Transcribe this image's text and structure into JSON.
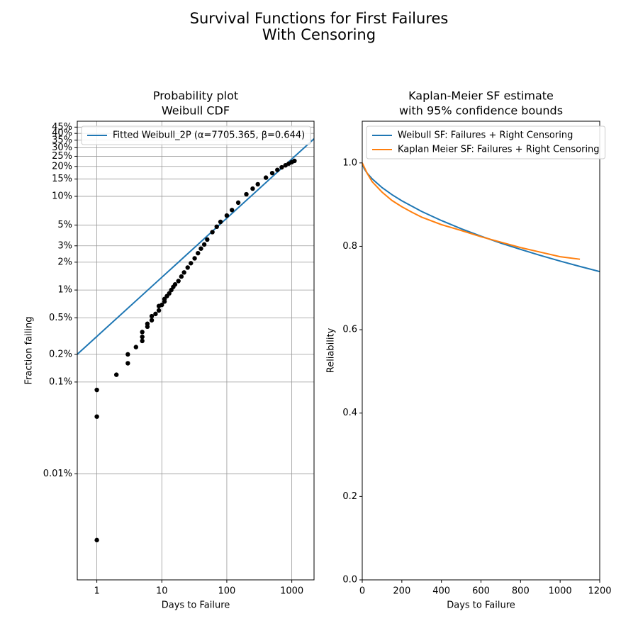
{
  "title": [
    "Survival Functions for First Failures",
    "With Censoring"
  ],
  "chart_data": [
    {
      "type": "scatter",
      "title": [
        "Probability plot",
        "Weibull CDF"
      ],
      "xlabel": "Days to Failure",
      "ylabel": "Fraction failing",
      "xscale": "log",
      "yscale": "weibull",
      "grid": true,
      "legend": "upper left",
      "xlim": [
        0.5,
        2200
      ],
      "xticks": [
        1,
        10,
        100,
        1000
      ],
      "ylim": [
        0.0007,
        50
      ],
      "yticks": [
        {
          "value": 0.01,
          "label": "0.01%"
        },
        {
          "value": 0.1,
          "label": "0.1%"
        },
        {
          "value": 0.2,
          "label": "0.2%"
        },
        {
          "value": 0.5,
          "label": "0.5%"
        },
        {
          "value": 1,
          "label": "1%"
        },
        {
          "value": 2,
          "label": "2%"
        },
        {
          "value": 3,
          "label": "3%"
        },
        {
          "value": 5,
          "label": "5%"
        },
        {
          "value": 10,
          "label": "10%"
        },
        {
          "value": 15,
          "label": "15%"
        },
        {
          "value": 20,
          "label": "20%"
        },
        {
          "value": 25,
          "label": "25%"
        },
        {
          "value": 30,
          "label": "30%"
        },
        {
          "value": 35,
          "label": "35%"
        },
        {
          "value": 40,
          "label": "40%"
        },
        {
          "value": 45,
          "label": "45%"
        }
      ],
      "series": [
        {
          "name": "Fitted Weibull_2P (α=7705.365, β=0.644)",
          "type": "line",
          "color": "#1f77b4",
          "x": [
            0.5,
            1,
            10,
            100,
            1000,
            2200
          ],
          "values": [
            0.2005,
            0.313,
            1.373,
            5.91,
            23.55,
            35.99
          ]
        },
        {
          "type": "scatter",
          "color": "#000000",
          "x": [
            1,
            1,
            1,
            2,
            3,
            3,
            4,
            5,
            5,
            5,
            6,
            6,
            7,
            7,
            8,
            9,
            9,
            10,
            11,
            11,
            12,
            13,
            14,
            15,
            16,
            18,
            20,
            22,
            25,
            28,
            32,
            36,
            40,
            45,
            50,
            60,
            70,
            80,
            100,
            120,
            150,
            200,
            250,
            300,
            400,
            500,
            600,
            700,
            800,
            900,
            1000,
            1100
          ],
          "values": [
            0.0019,
            0.042,
            0.082,
            0.12,
            0.16,
            0.2,
            0.24,
            0.28,
            0.31,
            0.35,
            0.4,
            0.43,
            0.47,
            0.52,
            0.55,
            0.6,
            0.67,
            0.69,
            0.75,
            0.8,
            0.86,
            0.92,
            1.0,
            1.08,
            1.15,
            1.25,
            1.4,
            1.55,
            1.75,
            1.95,
            2.2,
            2.5,
            2.8,
            3.1,
            3.5,
            4.2,
            4.8,
            5.4,
            6.3,
            7.2,
            8.6,
            10.5,
            12.0,
            13.3,
            15.5,
            17.2,
            18.5,
            19.6,
            20.5,
            21.3,
            22.0,
            22.6
          ]
        }
      ]
    },
    {
      "type": "line",
      "title": [
        "Kaplan-Meier SF estimate",
        "with 95% confidence bounds"
      ],
      "xlabel": "Days to Failure",
      "ylabel": "Reliability",
      "xscale": "linear",
      "yscale": "linear",
      "grid": false,
      "legend": "upper left",
      "xlim": [
        0,
        1200
      ],
      "xticks": [
        0,
        200,
        400,
        600,
        800,
        1000,
        1200
      ],
      "ylim": [
        0,
        1.1
      ],
      "yticks": [
        {
          "value": 0,
          "label": "0.0"
        },
        0.2,
        0.4,
        0.6,
        0.8,
        {
          "value": 1,
          "label": "1.0"
        }
      ],
      "series": [
        {
          "name": "Weibull SF: Failures + Right Censoring",
          "color": "#1f77b4",
          "x": [
            1,
            10,
            25,
            50,
            100,
            150,
            200,
            300,
            400,
            500,
            600,
            700,
            800,
            900,
            1000,
            1100,
            1200
          ],
          "values": [
            0.9969,
            0.9863,
            0.9753,
            0.9618,
            0.9409,
            0.9239,
            0.9092,
            0.8837,
            0.8618,
            0.8422,
            0.8243,
            0.8078,
            0.7926,
            0.7781,
            0.7645,
            0.7517,
            0.7394
          ]
        },
        {
          "name": "Kaplan Meier SF: Failures + Right Censoring",
          "color": "#ff7f0e",
          "x": [
            0,
            25,
            50,
            100,
            150,
            200,
            250,
            300,
            400,
            500,
            600,
            700,
            800,
            900,
            1000,
            1100
          ],
          "values": [
            1.0,
            0.975,
            0.955,
            0.93,
            0.91,
            0.895,
            0.882,
            0.87,
            0.852,
            0.838,
            0.823,
            0.81,
            0.797,
            0.786,
            0.775,
            0.769
          ]
        }
      ]
    }
  ]
}
